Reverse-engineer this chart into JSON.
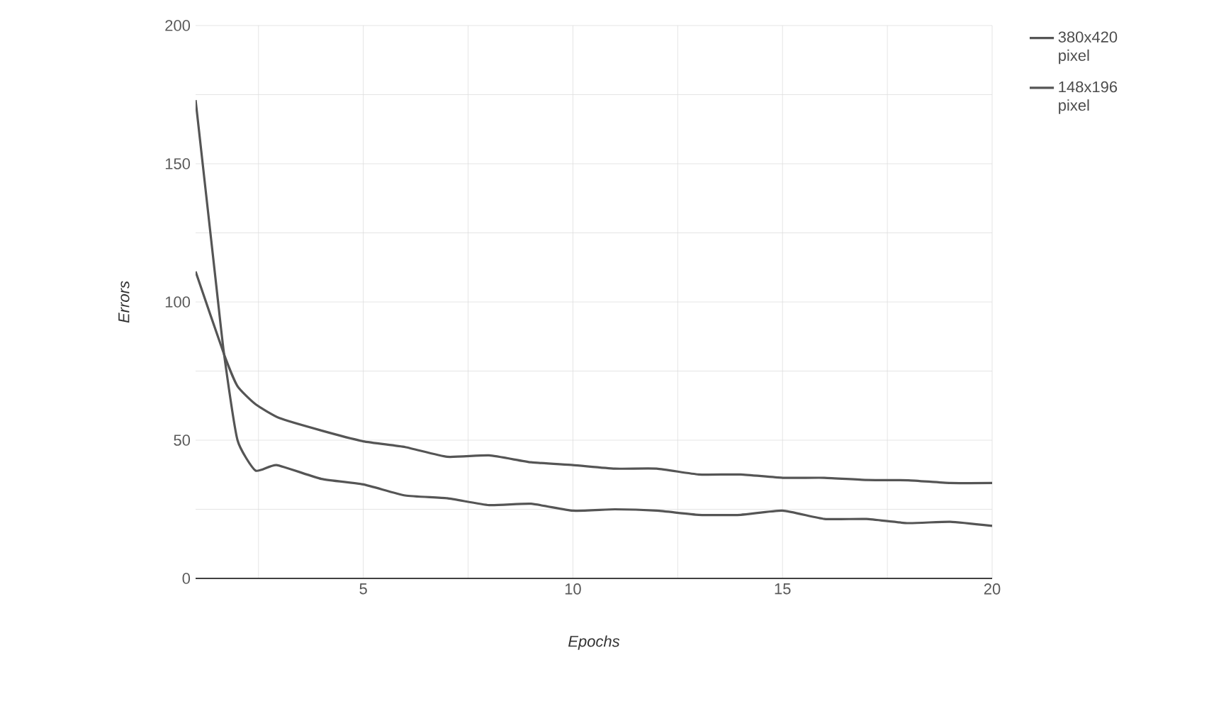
{
  "chart_data": {
    "type": "line",
    "xlabel": "Epochs",
    "ylabel": "Errors",
    "xlim": [
      1,
      20
    ],
    "ylim": [
      0,
      200
    ],
    "xticks": [
      {
        "value": 2.5,
        "label": null
      },
      5,
      {
        "value": 7.5,
        "label": null
      },
      10,
      {
        "value": 12.5,
        "label": null
      },
      15,
      {
        "value": 17.5,
        "label": null
      },
      20
    ],
    "yticks": [
      0,
      {
        "value": 25,
        "label": null
      },
      50,
      {
        "value": 75,
        "label": null
      },
      100,
      {
        "value": 125,
        "label": null
      },
      150,
      {
        "value": 175,
        "label": null
      },
      200
    ],
    "grid": true,
    "legend": "top right",
    "marker": "none",
    "line_style": "solid",
    "series": [
      {
        "name": "380x420 pixel",
        "color": "#555555",
        "x": [
          1,
          1.5,
          1.68,
          2,
          2.43,
          2.93,
          4,
          5,
          6,
          7,
          8,
          9,
          10,
          11,
          12,
          13,
          14,
          15,
          16,
          17,
          18,
          19,
          20
        ],
        "values": [
          173,
          105,
          81,
          50,
          39,
          41,
          36,
          34,
          30,
          29,
          26.5,
          27,
          24.5,
          25,
          24.5,
          23,
          23,
          24.5,
          21.5,
          21.5,
          20,
          20.5,
          19
        ]
      },
      {
        "name": "148x196 pixel",
        "color": "#555555",
        "x": [
          1,
          1.68,
          2,
          2.43,
          3,
          4,
          5,
          6,
          7,
          8,
          9,
          10,
          11,
          12,
          13,
          14,
          15,
          16,
          17,
          18,
          19,
          20
        ],
        "values": [
          111,
          81,
          69.5,
          63,
          58,
          53.5,
          49.6,
          47.5,
          44,
          44.5,
          42,
          41,
          39.7,
          39.7,
          37.6,
          37.6,
          36.4,
          36.4,
          35.6,
          35.5,
          34.5,
          34.5
        ]
      }
    ]
  }
}
